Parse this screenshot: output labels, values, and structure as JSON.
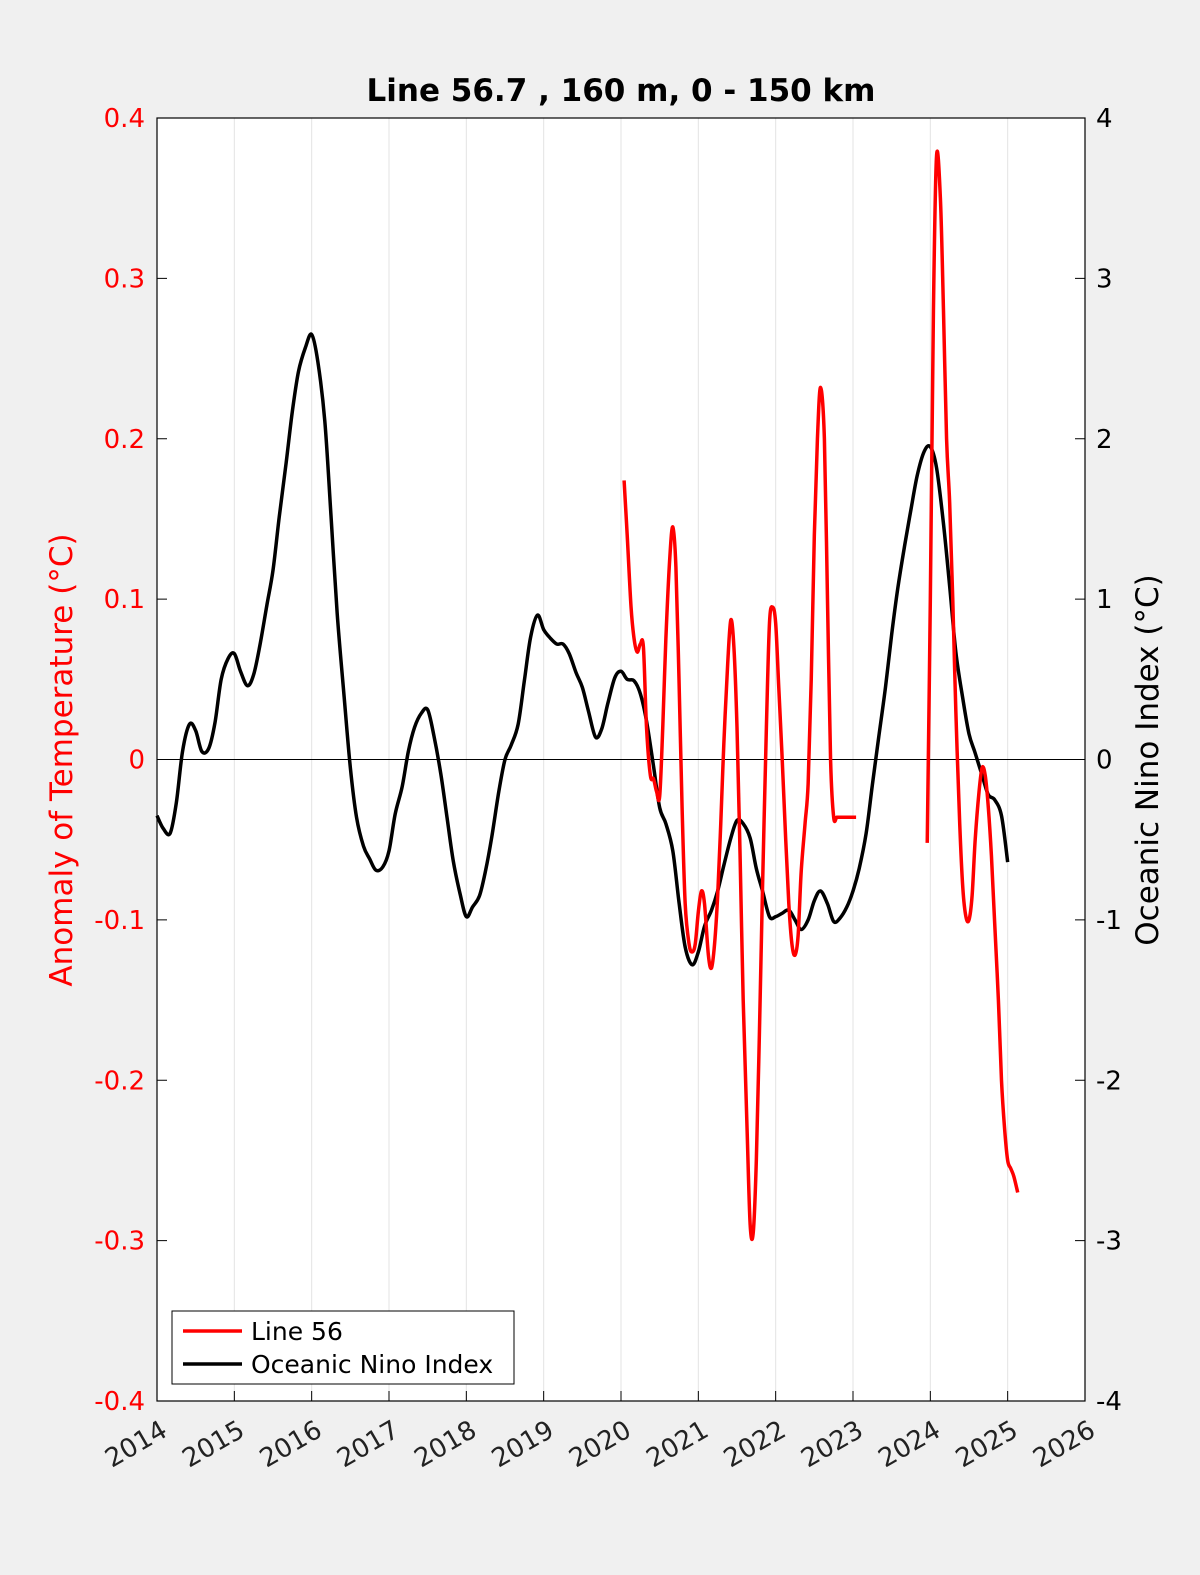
{
  "chart_data": {
    "type": "line",
    "title": "Line 56.7 , 160 m, 0 - 150 km",
    "xlabel": "",
    "ylabel_left": "Anomaly of Temperature (°C)",
    "ylabel_right": "Oceanic Nino Index (°C)",
    "xlim": [
      2014,
      2026
    ],
    "ylim_left": [
      -0.4,
      0.4
    ],
    "ylim_right": [
      -4,
      4
    ],
    "x_ticks": [
      "2014",
      "2015",
      "2016",
      "2017",
      "2018",
      "2019",
      "2020",
      "2021",
      "2022",
      "2023",
      "2024",
      "2025",
      "2026"
    ],
    "y_ticks_left": [
      "-0.4",
      "-0.3",
      "-0.2",
      "-0.1",
      "0",
      "0.1",
      "0.2",
      "0.3",
      "0.4"
    ],
    "y_ticks_right": [
      "-4",
      "-3",
      "-2",
      "-1",
      "0",
      "1",
      "2",
      "3",
      "4"
    ],
    "grid": "vertical",
    "legend_position": "bottom-left",
    "colors": {
      "line56": "#ff0000",
      "oni": "#000000"
    },
    "series": [
      {
        "name": "Line 56",
        "axis": "left",
        "segments": [
          {
            "x": [
              2020.04,
              2020.08,
              2020.13,
              2020.17,
              2020.21,
              2020.25,
              2020.29,
              2020.33,
              2020.38,
              2020.42,
              2020.46,
              2020.5,
              2020.54,
              2020.58,
              2020.63,
              2020.67,
              2020.71,
              2020.75,
              2020.79,
              2020.83,
              2020.88,
              2020.92,
              2020.96,
              2021.0,
              2021.04,
              2021.08,
              2021.13,
              2021.17,
              2021.21,
              2021.25,
              2021.29,
              2021.33,
              2021.38,
              2021.42,
              2021.46,
              2021.5,
              2021.54,
              2021.58,
              2021.63,
              2021.67,
              2021.71,
              2021.75,
              2021.79,
              2021.83,
              2021.88,
              2021.92,
              2021.96,
              2022.0,
              2022.04,
              2022.08,
              2022.13,
              2022.17,
              2022.21,
              2022.25,
              2022.29,
              2022.33,
              2022.38,
              2022.42,
              2022.46,
              2022.5,
              2022.54,
              2022.58,
              2022.63,
              2022.67,
              2022.71,
              2022.75,
              2022.79,
              2022.83,
              2022.88,
              2022.92,
              2022.96,
              2023.0,
              2023.04
            ],
            "y": [
              0.174,
              0.14,
              0.095,
              0.075,
              0.067,
              0.072,
              0.07,
              0.02,
              -0.01,
              -0.012,
              -0.02,
              -0.023,
              0.02,
              0.075,
              0.125,
              0.145,
              0.12,
              0.05,
              -0.03,
              -0.09,
              -0.115,
              -0.12,
              -0.115,
              -0.095,
              -0.082,
              -0.09,
              -0.122,
              -0.13,
              -0.115,
              -0.085,
              -0.04,
              0.01,
              0.06,
              0.087,
              0.07,
              0.02,
              -0.06,
              -0.15,
              -0.23,
              -0.29,
              -0.295,
              -0.25,
              -0.17,
              -0.08,
              0.02,
              0.085,
              0.095,
              0.085,
              0.045,
              0.005,
              -0.05,
              -0.09,
              -0.115,
              -0.122,
              -0.11,
              -0.07,
              -0.04,
              -0.015,
              0.05,
              0.14,
              0.2,
              0.232,
              0.2,
              0.1,
              0.0,
              -0.036,
              -0.036,
              -0.036,
              -0.036,
              -0.036,
              -0.036,
              -0.036,
              -0.036
            ]
          },
          {
            "x": [
              2023.96,
              2024.0,
              2024.04,
              2024.08,
              2024.13,
              2024.17,
              2024.21,
              2024.25,
              2024.29,
              2024.33,
              2024.38,
              2024.42,
              2024.46,
              2024.5,
              2024.54,
              2024.58,
              2024.63,
              2024.67,
              2024.71,
              2024.75,
              2024.79,
              2024.83,
              2024.88,
              2024.92,
              2024.96,
              2025.0,
              2025.04,
              2025.08,
              2025.13
            ],
            "y": [
              -0.052,
              0.1,
              0.28,
              0.376,
              0.35,
              0.28,
              0.2,
              0.16,
              0.1,
              0.03,
              -0.04,
              -0.08,
              -0.098,
              -0.1,
              -0.085,
              -0.05,
              -0.02,
              -0.005,
              -0.01,
              -0.03,
              -0.06,
              -0.1,
              -0.15,
              -0.2,
              -0.23,
              -0.25,
              -0.255,
              -0.26,
              -0.27
            ]
          }
        ]
      },
      {
        "name": "Oceanic Nino Index",
        "axis": "right",
        "x": [
          2014.0,
          2014.08,
          2014.17,
          2014.25,
          2014.33,
          2014.42,
          2014.5,
          2014.58,
          2014.67,
          2014.75,
          2014.83,
          2014.92,
          2015.0,
          2015.08,
          2015.17,
          2015.25,
          2015.33,
          2015.42,
          2015.5,
          2015.58,
          2015.67,
          2015.75,
          2015.83,
          2015.92,
          2016.0,
          2016.08,
          2016.17,
          2016.25,
          2016.33,
          2016.42,
          2016.5,
          2016.58,
          2016.67,
          2016.75,
          2016.83,
          2016.92,
          2017.0,
          2017.08,
          2017.17,
          2017.25,
          2017.33,
          2017.42,
          2017.5,
          2017.58,
          2017.67,
          2017.75,
          2017.83,
          2017.92,
          2018.0,
          2018.08,
          2018.17,
          2018.25,
          2018.33,
          2018.42,
          2018.5,
          2018.58,
          2018.67,
          2018.75,
          2018.83,
          2018.92,
          2019.0,
          2019.08,
          2019.17,
          2019.25,
          2019.33,
          2019.42,
          2019.5,
          2019.58,
          2019.67,
          2019.75,
          2019.83,
          2019.92,
          2020.0,
          2020.08,
          2020.17,
          2020.25,
          2020.33,
          2020.42,
          2020.5,
          2020.58,
          2020.67,
          2020.75,
          2020.83,
          2020.92,
          2021.0,
          2021.08,
          2021.17,
          2021.25,
          2021.33,
          2021.42,
          2021.5,
          2021.58,
          2021.67,
          2021.75,
          2021.83,
          2021.92,
          2022.0,
          2022.08,
          2022.17,
          2022.25,
          2022.33,
          2022.42,
          2022.5,
          2022.58,
          2022.67,
          2022.75,
          2022.83,
          2022.92,
          2023.0,
          2023.08,
          2023.17,
          2023.25,
          2023.33,
          2023.42,
          2023.5,
          2023.58,
          2023.67,
          2023.75,
          2023.83,
          2023.92,
          2024.0,
          2024.08,
          2024.17,
          2024.25,
          2024.33,
          2024.42,
          2024.5,
          2024.58,
          2024.67,
          2024.75,
          2024.83,
          2024.92,
          2025.0
        ],
        "y": [
          -0.35,
          -0.43,
          -0.46,
          -0.27,
          0.05,
          0.22,
          0.18,
          0.05,
          0.07,
          0.23,
          0.5,
          0.63,
          0.66,
          0.55,
          0.46,
          0.53,
          0.71,
          0.96,
          1.18,
          1.51,
          1.85,
          2.17,
          2.42,
          2.57,
          2.65,
          2.48,
          2.11,
          1.52,
          0.91,
          0.39,
          -0.05,
          -0.36,
          -0.54,
          -0.62,
          -0.69,
          -0.67,
          -0.57,
          -0.34,
          -0.17,
          0.05,
          0.2,
          0.29,
          0.31,
          0.15,
          -0.09,
          -0.36,
          -0.63,
          -0.84,
          -0.98,
          -0.92,
          -0.85,
          -0.69,
          -0.48,
          -0.2,
          0.0,
          0.09,
          0.22,
          0.49,
          0.76,
          0.9,
          0.81,
          0.76,
          0.72,
          0.72,
          0.66,
          0.54,
          0.45,
          0.3,
          0.14,
          0.19,
          0.35,
          0.51,
          0.55,
          0.5,
          0.49,
          0.41,
          0.24,
          -0.04,
          -0.3,
          -0.4,
          -0.57,
          -0.89,
          -1.17,
          -1.28,
          -1.2,
          -1.04,
          -0.94,
          -0.82,
          -0.66,
          -0.49,
          -0.38,
          -0.4,
          -0.49,
          -0.68,
          -0.82,
          -0.98,
          -0.98,
          -0.96,
          -0.94,
          -1.0,
          -1.06,
          -1.0,
          -0.88,
          -0.82,
          -0.9,
          -1.01,
          -0.99,
          -0.92,
          -0.82,
          -0.68,
          -0.46,
          -0.16,
          0.13,
          0.45,
          0.78,
          1.07,
          1.34,
          1.56,
          1.77,
          1.92,
          1.95,
          1.82,
          1.47,
          1.08,
          0.67,
          0.38,
          0.16,
          0.04,
          -0.1,
          -0.22,
          -0.25,
          -0.35,
          -0.64
        ]
      }
    ],
    "legend": [
      {
        "label": "Line 56",
        "color": "#ff0000"
      },
      {
        "label": "Oceanic Nino Index",
        "color": "#000000"
      }
    ]
  }
}
